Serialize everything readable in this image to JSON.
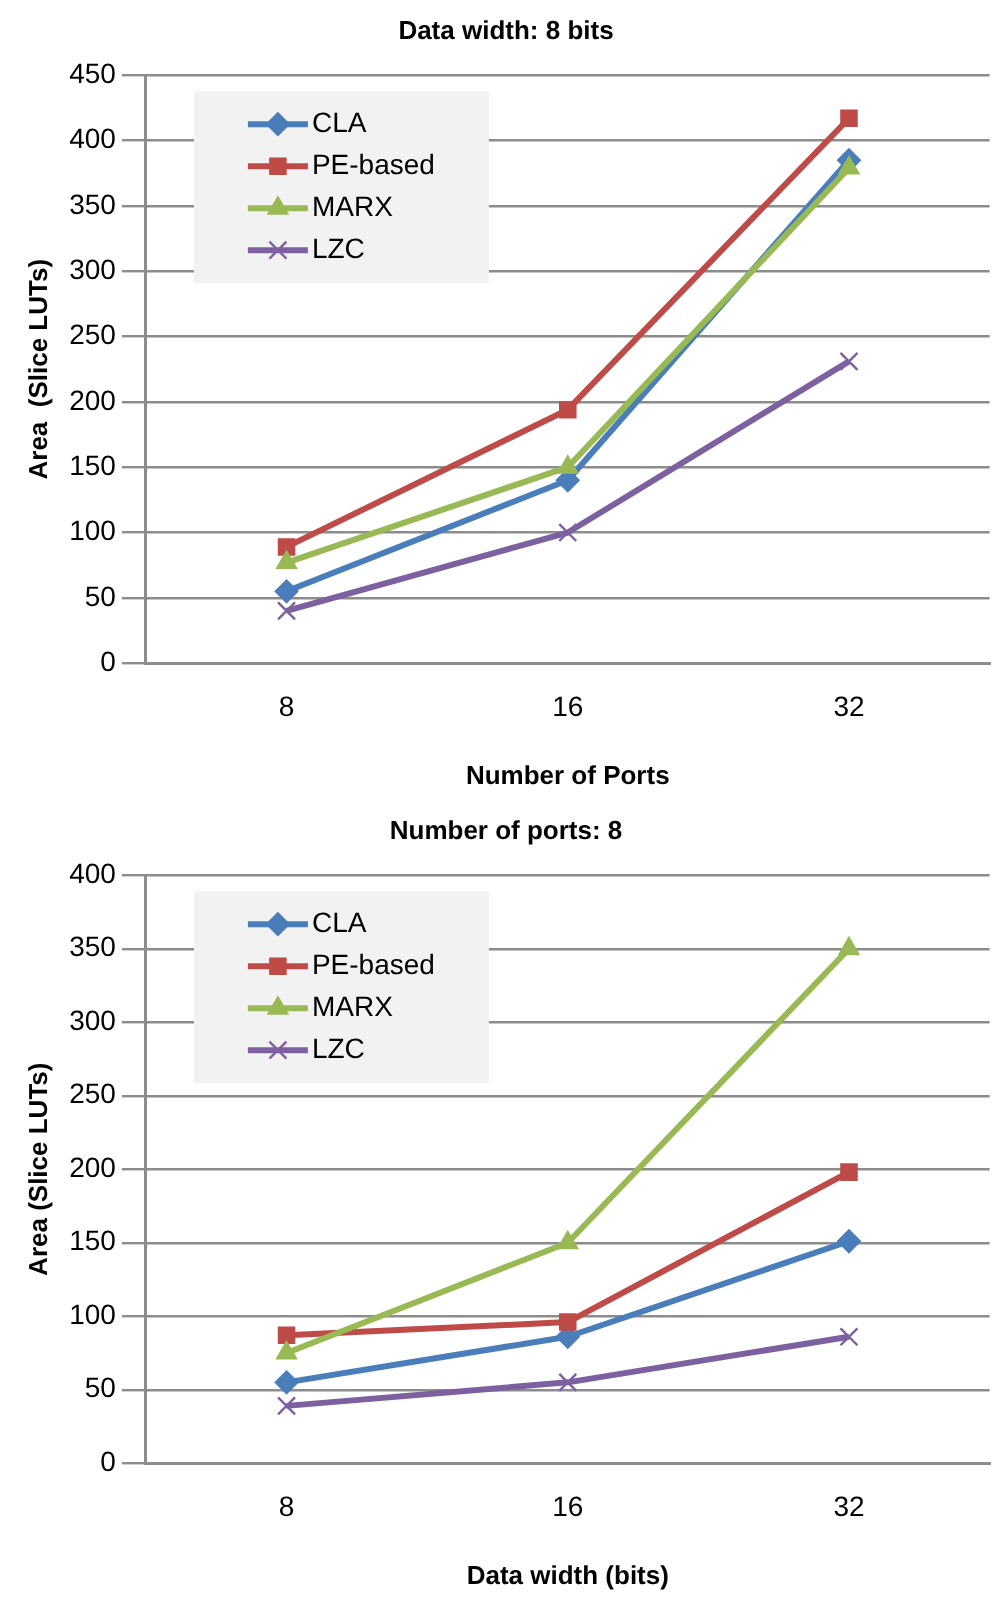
{
  "chart_data": [
    {
      "type": "line",
      "title": "Data width: 8 bits",
      "xlabel": "Number of Ports",
      "ylabel": "Area  (Slice LUTs)",
      "categories": [
        "8",
        "16",
        "32"
      ],
      "ylim": [
        0,
        450
      ],
      "yticks": [
        0,
        50,
        100,
        150,
        200,
        250,
        300,
        350,
        400,
        450
      ],
      "grid": "y",
      "legend": "top left",
      "line_style": "solid",
      "series": [
        {
          "name": "CLA",
          "color": "#4a7ebb",
          "marker": "diamond",
          "values": [
            55,
            140,
            385
          ]
        },
        {
          "name": "PE-based",
          "color": "#be4b48",
          "marker": "square",
          "values": [
            89,
            194,
            417
          ]
        },
        {
          "name": "MARX",
          "color": "#98b954",
          "marker": "triangle",
          "values": [
            77,
            150,
            379
          ]
        },
        {
          "name": "LZC",
          "color": "#7d60a0",
          "marker": "cross",
          "values": [
            40,
            100,
            231
          ]
        }
      ]
    },
    {
      "type": "line",
      "title": "Number of ports: 8",
      "xlabel": "Data width (bits)",
      "ylabel": "Area (Slice LUTs)",
      "categories": [
        "8",
        "16",
        "32"
      ],
      "ylim": [
        0,
        400
      ],
      "yticks": [
        0,
        50,
        100,
        150,
        200,
        250,
        300,
        350,
        400
      ],
      "grid": "y",
      "legend": "top left",
      "line_style": "solid",
      "series": [
        {
          "name": "CLA",
          "color": "#4a7ebb",
          "marker": "diamond",
          "values": [
            55,
            86,
            151
          ]
        },
        {
          "name": "PE-based",
          "color": "#be4b48",
          "marker": "square",
          "values": [
            87,
            96,
            198
          ]
        },
        {
          "name": "MARX",
          "color": "#98b954",
          "marker": "triangle",
          "values": [
            75,
            150,
            350
          ]
        },
        {
          "name": "LZC",
          "color": "#7d60a0",
          "marker": "cross",
          "values": [
            39,
            55,
            86
          ]
        }
      ]
    }
  ]
}
